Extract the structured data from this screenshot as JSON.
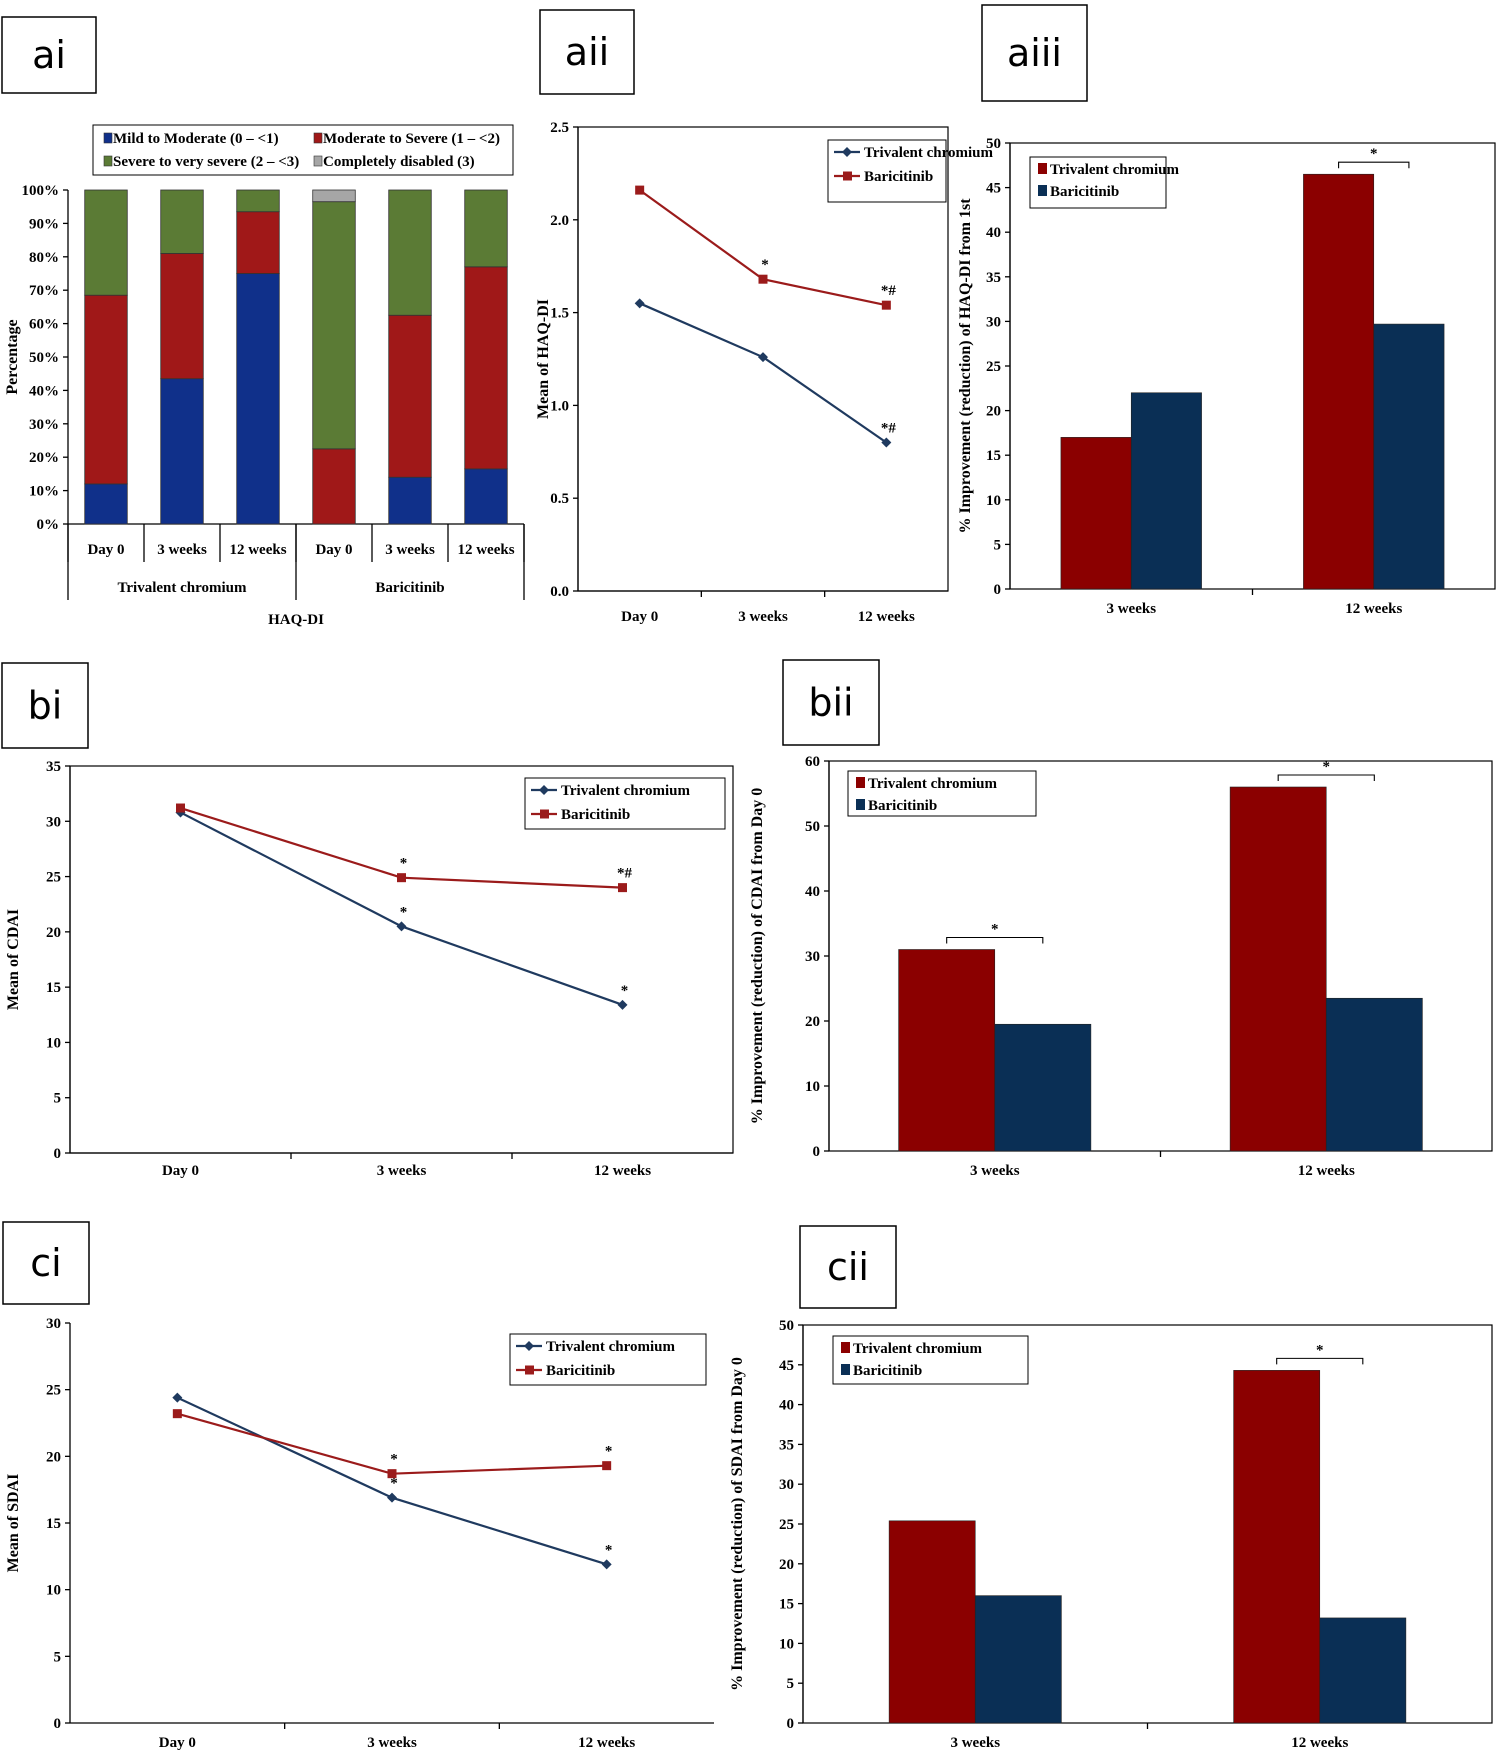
{
  "colors": {
    "trivalent": "#8B0000",
    "baricitinib": "#0A2F55",
    "line_trivalent": "#1F3A5F",
    "line_baricitinib": "#9B1B1B",
    "green": "#5B7B35",
    "grey": "#A6A6A6",
    "blue": "#10308A",
    "red": "#A01818"
  },
  "chart_data": [
    {
      "id": "ai",
      "panel_label": "ai",
      "type": "bar",
      "stacked": true,
      "ylabel": "Percentage",
      "yticks": [
        "0%",
        "10%",
        "20%",
        "30%",
        "40%",
        "50%",
        "60%",
        "70%",
        "80%",
        "90%",
        "100%"
      ],
      "categories": [
        "Day 0",
        "3 weeks",
        "12 weeks",
        "Day 0",
        "3 weeks",
        "12 weeks"
      ],
      "groups": [
        "Trivalent chromium",
        "Baricitinib"
      ],
      "xlabel": "HAQ-DI",
      "series": [
        {
          "name": "Mild to Moderate (0 – <1)",
          "values": [
            12,
            43.5,
            75,
            0,
            14,
            16.5
          ]
        },
        {
          "name": "Moderate to Severe (1 – <2)",
          "values": [
            56.5,
            37.5,
            18.5,
            22.5,
            48.5,
            60.5
          ]
        },
        {
          "name": "Severe to very severe (2 – <3)",
          "values": [
            31.5,
            19,
            6.5,
            74,
            37.5,
            23
          ]
        },
        {
          "name": "Completely disabled (3)",
          "values": [
            0,
            0,
            0,
            3.5,
            0,
            0
          ]
        }
      ]
    },
    {
      "id": "aii",
      "panel_label": "aii",
      "type": "line",
      "ylabel": "Mean of HAQ-DI",
      "yticks": [
        "0.0",
        "0.5",
        "1.0",
        "1.5",
        "2.0",
        "2.5"
      ],
      "ylim": [
        0,
        2.5
      ],
      "categories": [
        "Day 0",
        "3 weeks",
        "12 weeks"
      ],
      "series": [
        {
          "name": "Trivalent chromium",
          "values": [
            1.55,
            1.26,
            0.8
          ],
          "marks": [
            "",
            "",
            "*#"
          ]
        },
        {
          "name": "Baricitinib",
          "values": [
            2.16,
            1.68,
            1.54
          ],
          "marks": [
            "",
            "*",
            "*#"
          ]
        }
      ]
    },
    {
      "id": "aiii",
      "panel_label": "aiii",
      "type": "bar",
      "ylabel": "% Improvement (reduction) of HAQ-DI from 1st",
      "yticks": [
        "0",
        "5",
        "10",
        "15",
        "20",
        "25",
        "30",
        "35",
        "40",
        "45",
        "50"
      ],
      "ylim": [
        0,
        50
      ],
      "categories": [
        "3 weeks",
        "12 weeks"
      ],
      "series": [
        {
          "name": "Trivalent chromium",
          "values": [
            17,
            46.5
          ]
        },
        {
          "name": "Baricitinib",
          "values": [
            22,
            29.7
          ]
        }
      ],
      "sig": [
        "",
        "*"
      ]
    },
    {
      "id": "bi",
      "panel_label": "bi",
      "type": "line",
      "ylabel": "Mean of CDAI",
      "yticks": [
        "0",
        "5",
        "10",
        "15",
        "20",
        "25",
        "30",
        "35"
      ],
      "ylim": [
        0,
        35
      ],
      "categories": [
        "Day 0",
        "3 weeks",
        "12 weeks"
      ],
      "series": [
        {
          "name": "Trivalent chromium",
          "values": [
            30.8,
            20.5,
            13.4
          ],
          "marks": [
            "",
            "*",
            "*"
          ]
        },
        {
          "name": "Baricitinib",
          "values": [
            31.2,
            24.9,
            24.0
          ],
          "marks": [
            "",
            "*",
            "*#"
          ]
        }
      ]
    },
    {
      "id": "bii",
      "panel_label": "bii",
      "type": "bar",
      "ylabel": "% Improvement (reduction) of CDAI from Day 0",
      "yticks": [
        "0",
        "10",
        "20",
        "30",
        "40",
        "50",
        "60"
      ],
      "ylim": [
        0,
        60
      ],
      "categories": [
        "3 weeks",
        "12 weeks"
      ],
      "series": [
        {
          "name": "Trivalent chromium",
          "values": [
            31,
            56
          ]
        },
        {
          "name": "Baricitinib",
          "values": [
            19.5,
            23.5
          ]
        }
      ],
      "sig": [
        "*",
        "*"
      ]
    },
    {
      "id": "ci",
      "panel_label": "ci",
      "type": "line",
      "ylabel": "Mean of SDAI",
      "yticks": [
        "0",
        "5",
        "10",
        "15",
        "20",
        "25",
        "30"
      ],
      "ylim": [
        0,
        30
      ],
      "categories": [
        "Day 0",
        "3 weeks",
        "12 weeks"
      ],
      "series": [
        {
          "name": "Trivalent chromium",
          "values": [
            24.4,
            16.9,
            11.9
          ],
          "marks": [
            "",
            "*",
            "*"
          ]
        },
        {
          "name": "Baricitinib",
          "values": [
            23.2,
            18.7,
            19.3
          ],
          "marks": [
            "",
            "*",
            "*"
          ]
        }
      ]
    },
    {
      "id": "cii",
      "panel_label": "cii",
      "type": "bar",
      "ylabel": "% Improvement (reduction) of SDAI from Day 0",
      "yticks": [
        "0",
        "5",
        "10",
        "15",
        "20",
        "25",
        "30",
        "35",
        "40",
        "45",
        "50"
      ],
      "ylim": [
        0,
        50
      ],
      "categories": [
        "3 weeks",
        "12 weeks"
      ],
      "series": [
        {
          "name": "Trivalent chromium",
          "values": [
            25.4,
            44.3
          ]
        },
        {
          "name": "Baricitinib",
          "values": [
            16,
            13.2
          ]
        }
      ],
      "sig": [
        "",
        "*"
      ]
    }
  ]
}
